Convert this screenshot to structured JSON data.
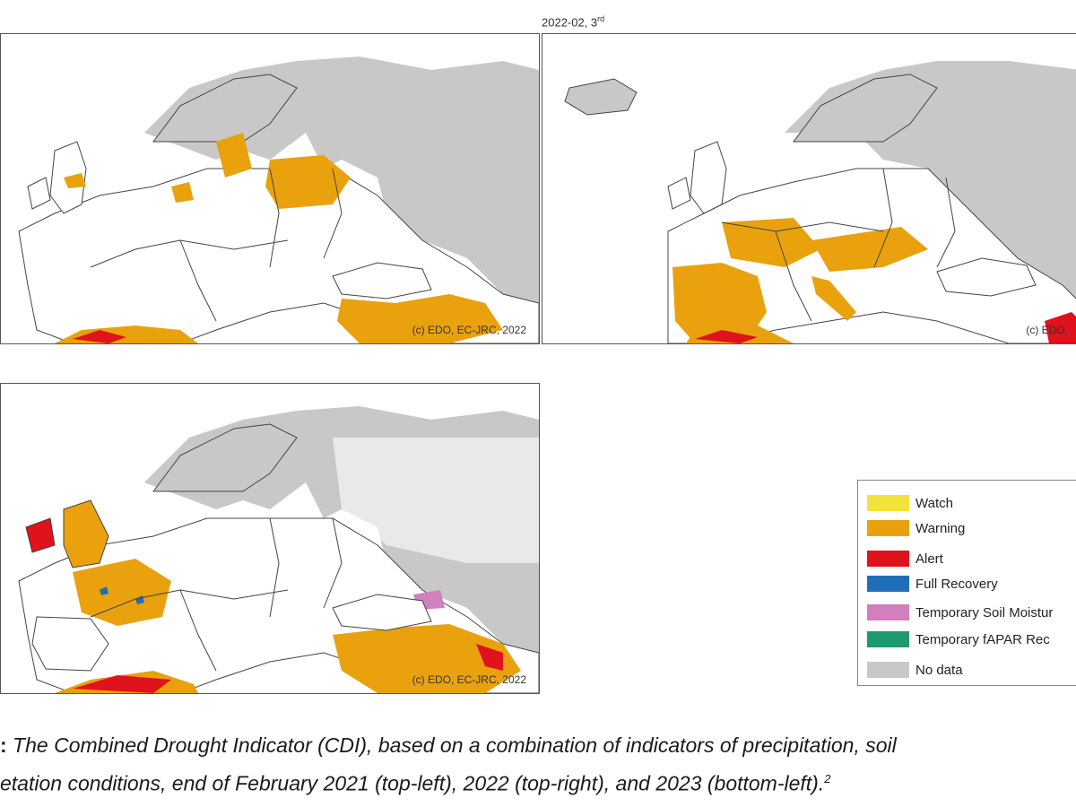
{
  "header": {
    "date_label": "2022-02, 3",
    "date_label_sup": "rd"
  },
  "maps": [
    {
      "id": "top-left",
      "year": "2021",
      "copyright": "(c) EDO, EC-JRC, 2022"
    },
    {
      "id": "top-right",
      "year": "2022",
      "copyright": "(c) EDO,"
    },
    {
      "id": "bottom-left",
      "year": "2023",
      "copyright": "(c) EDO, EC-JRC, 2022"
    }
  ],
  "legend": {
    "items": [
      {
        "label": "Watch",
        "color": "#f2e33a"
      },
      {
        "label": "Warning",
        "color": "#e9a10e"
      },
      {
        "label": "Alert",
        "color": "#e0121c"
      },
      {
        "label": "Full Recovery",
        "color": "#1f6fb8"
      },
      {
        "label": "Temporary Soil Moistur",
        "color": "#d17fbf"
      },
      {
        "label": "Temporary fAPAR Rec",
        "color": "#1e9b6e"
      },
      {
        "label": "No data",
        "color": "#c8c8c8"
      }
    ]
  },
  "caption": {
    "lead": ":",
    "line1": " The Combined Drought Indicator (CDI), based on a combination of indicators of precipitation, soil",
    "line2": "etation conditions, end of February 2021 (top-left), 2022 (top-right), and 2023 (bottom-left).",
    "footnote": "2"
  },
  "colors": {
    "land": "#ffffff",
    "nodata": "#c8c8c8",
    "warning": "#e9a10e",
    "alert": "#e0121c",
    "recovery": "#1f6fb8",
    "border": "#444444"
  }
}
